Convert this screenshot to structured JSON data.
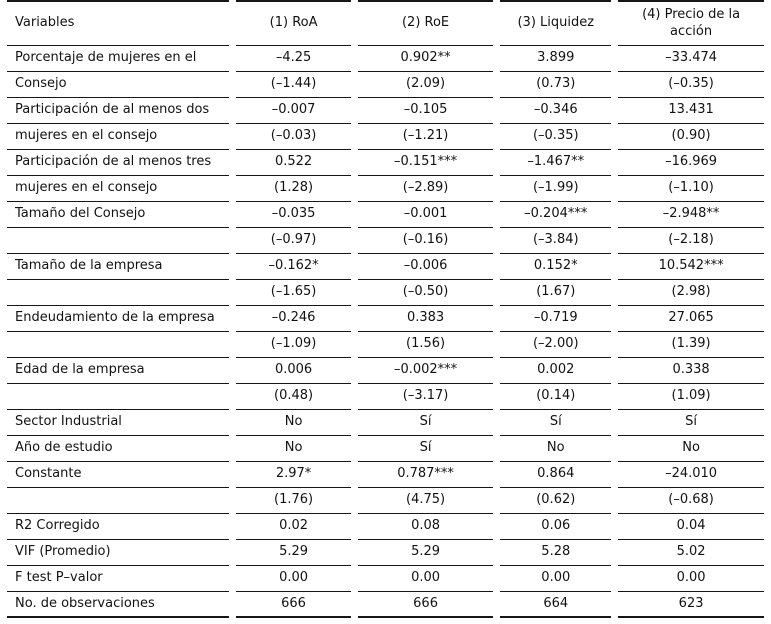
{
  "table": {
    "header": [
      "Variables",
      "(1) RoA",
      "(2) RoE",
      "(3) Liquidez",
      "(4) Precio de la acción"
    ],
    "rows": [
      {
        "label": "Porcentaje de mujeres en el",
        "values": [
          "–4.25",
          "0.902**",
          "3.899",
          "–33.474"
        ]
      },
      {
        "label": "Consejo",
        "values": [
          "(–1.44)",
          "(2.09)",
          "(0.73)",
          "(–0.35)"
        ]
      },
      {
        "label": "Participación de al menos dos",
        "values": [
          "–0.007",
          "–0.105",
          "–0.346",
          "13.431"
        ]
      },
      {
        "label": "mujeres en el consejo",
        "values": [
          "(–0.03)",
          "(–1.21)",
          "(–0.35)",
          "(0.90)"
        ]
      },
      {
        "label": "Participación de al menos tres",
        "values": [
          "0.522",
          "–0.151***",
          "–1.467**",
          "–16.969"
        ]
      },
      {
        "label": "mujeres en el consejo",
        "values": [
          "(1.28)",
          "(–2.89)",
          "(–1.99)",
          "(–1.10)"
        ]
      },
      {
        "label": "Tamaño del Consejo",
        "values": [
          "–0.035",
          "–0.001",
          "–0.204***",
          "–2.948**"
        ]
      },
      {
        "label": "",
        "values": [
          "(–0.97)",
          "(–0.16)",
          "(–3.84)",
          "(–2.18)"
        ]
      },
      {
        "label": "Tamaño de la empresa",
        "values": [
          "–0.162*",
          "–0.006",
          "0.152*",
          "10.542***"
        ]
      },
      {
        "label": "",
        "values": [
          "(–1.65)",
          "(–0.50)",
          "(1.67)",
          "(2.98)"
        ]
      },
      {
        "label": "Endeudamiento de la empresa",
        "values": [
          "–0.246",
          "0.383",
          "–0.719",
          "27.065"
        ]
      },
      {
        "label": "",
        "values": [
          "(–1.09)",
          "(1.56)",
          "(–2.00)",
          "(1.39)"
        ]
      },
      {
        "label": "Edad de la empresa",
        "values": [
          "0.006",
          "–0.002***",
          "0.002",
          "0.338"
        ]
      },
      {
        "label": "",
        "values": [
          "(0.48)",
          "(–3.17)",
          "(0.14)",
          "(1.09)"
        ]
      },
      {
        "label": "Sector Industrial",
        "values": [
          "No",
          "Sí",
          "Sí",
          "Sí"
        ]
      },
      {
        "label": "Año de estudio",
        "values": [
          "No",
          "Sí",
          "No",
          "No"
        ]
      },
      {
        "label": "Constante",
        "values": [
          "2.97*",
          "0.787***",
          "0.864",
          "–24.010"
        ]
      },
      {
        "label": "",
        "values": [
          "(1.76)",
          "(4.75)",
          "(0.62)",
          "(–0.68)"
        ]
      },
      {
        "label": "R2 Corregido",
        "values": [
          "0.02",
          "0.08",
          "0.06",
          "0.04"
        ]
      },
      {
        "label": "VIF (Promedio)",
        "values": [
          "5.29",
          "5.29",
          "5.28",
          "5.02"
        ]
      },
      {
        "label": "F test P–valor",
        "values": [
          "0.00",
          "0.00",
          "0.00",
          "0.00"
        ]
      },
      {
        "label": "No. de observaciones",
        "values": [
          "666",
          "666",
          "664",
          "623"
        ]
      }
    ]
  }
}
